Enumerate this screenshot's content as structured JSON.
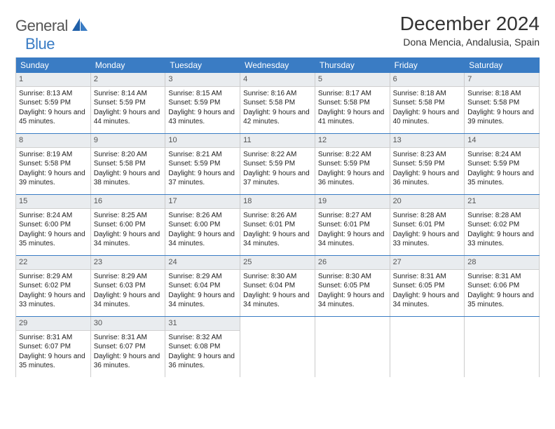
{
  "brand": {
    "text1": "General",
    "text2": "Blue"
  },
  "title": "December 2024",
  "location": "Dona Mencia, Andalusia, Spain",
  "headers": [
    "Sunday",
    "Monday",
    "Tuesday",
    "Wednesday",
    "Thursday",
    "Friday",
    "Saturday"
  ],
  "colors": {
    "accent": "#3a7cc4",
    "dateBar": "#e9ecef",
    "border": "#cccccc"
  },
  "days": [
    {
      "n": "1",
      "sr": "8:13 AM",
      "ss": "5:59 PM",
      "dl": "9 hours and 45 minutes."
    },
    {
      "n": "2",
      "sr": "8:14 AM",
      "ss": "5:59 PM",
      "dl": "9 hours and 44 minutes."
    },
    {
      "n": "3",
      "sr": "8:15 AM",
      "ss": "5:59 PM",
      "dl": "9 hours and 43 minutes."
    },
    {
      "n": "4",
      "sr": "8:16 AM",
      "ss": "5:58 PM",
      "dl": "9 hours and 42 minutes."
    },
    {
      "n": "5",
      "sr": "8:17 AM",
      "ss": "5:58 PM",
      "dl": "9 hours and 41 minutes."
    },
    {
      "n": "6",
      "sr": "8:18 AM",
      "ss": "5:58 PM",
      "dl": "9 hours and 40 minutes."
    },
    {
      "n": "7",
      "sr": "8:18 AM",
      "ss": "5:58 PM",
      "dl": "9 hours and 39 minutes."
    },
    {
      "n": "8",
      "sr": "8:19 AM",
      "ss": "5:58 PM",
      "dl": "9 hours and 39 minutes."
    },
    {
      "n": "9",
      "sr": "8:20 AM",
      "ss": "5:58 PM",
      "dl": "9 hours and 38 minutes."
    },
    {
      "n": "10",
      "sr": "8:21 AM",
      "ss": "5:59 PM",
      "dl": "9 hours and 37 minutes."
    },
    {
      "n": "11",
      "sr": "8:22 AM",
      "ss": "5:59 PM",
      "dl": "9 hours and 37 minutes."
    },
    {
      "n": "12",
      "sr": "8:22 AM",
      "ss": "5:59 PM",
      "dl": "9 hours and 36 minutes."
    },
    {
      "n": "13",
      "sr": "8:23 AM",
      "ss": "5:59 PM",
      "dl": "9 hours and 36 minutes."
    },
    {
      "n": "14",
      "sr": "8:24 AM",
      "ss": "5:59 PM",
      "dl": "9 hours and 35 minutes."
    },
    {
      "n": "15",
      "sr": "8:24 AM",
      "ss": "6:00 PM",
      "dl": "9 hours and 35 minutes."
    },
    {
      "n": "16",
      "sr": "8:25 AM",
      "ss": "6:00 PM",
      "dl": "9 hours and 34 minutes."
    },
    {
      "n": "17",
      "sr": "8:26 AM",
      "ss": "6:00 PM",
      "dl": "9 hours and 34 minutes."
    },
    {
      "n": "18",
      "sr": "8:26 AM",
      "ss": "6:01 PM",
      "dl": "9 hours and 34 minutes."
    },
    {
      "n": "19",
      "sr": "8:27 AM",
      "ss": "6:01 PM",
      "dl": "9 hours and 34 minutes."
    },
    {
      "n": "20",
      "sr": "8:28 AM",
      "ss": "6:01 PM",
      "dl": "9 hours and 33 minutes."
    },
    {
      "n": "21",
      "sr": "8:28 AM",
      "ss": "6:02 PM",
      "dl": "9 hours and 33 minutes."
    },
    {
      "n": "22",
      "sr": "8:29 AM",
      "ss": "6:02 PM",
      "dl": "9 hours and 33 minutes."
    },
    {
      "n": "23",
      "sr": "8:29 AM",
      "ss": "6:03 PM",
      "dl": "9 hours and 34 minutes."
    },
    {
      "n": "24",
      "sr": "8:29 AM",
      "ss": "6:04 PM",
      "dl": "9 hours and 34 minutes."
    },
    {
      "n": "25",
      "sr": "8:30 AM",
      "ss": "6:04 PM",
      "dl": "9 hours and 34 minutes."
    },
    {
      "n": "26",
      "sr": "8:30 AM",
      "ss": "6:05 PM",
      "dl": "9 hours and 34 minutes."
    },
    {
      "n": "27",
      "sr": "8:31 AM",
      "ss": "6:05 PM",
      "dl": "9 hours and 34 minutes."
    },
    {
      "n": "28",
      "sr": "8:31 AM",
      "ss": "6:06 PM",
      "dl": "9 hours and 35 minutes."
    },
    {
      "n": "29",
      "sr": "8:31 AM",
      "ss": "6:07 PM",
      "dl": "9 hours and 35 minutes."
    },
    {
      "n": "30",
      "sr": "8:31 AM",
      "ss": "6:07 PM",
      "dl": "9 hours and 36 minutes."
    },
    {
      "n": "31",
      "sr": "8:32 AM",
      "ss": "6:08 PM",
      "dl": "9 hours and 36 minutes."
    }
  ],
  "labels": {
    "sunrise": "Sunrise: ",
    "sunset": "Sunset: ",
    "daylight": "Daylight: "
  },
  "layout": {
    "columns": 7,
    "rows": 5,
    "cellMinHeight": 86
  }
}
